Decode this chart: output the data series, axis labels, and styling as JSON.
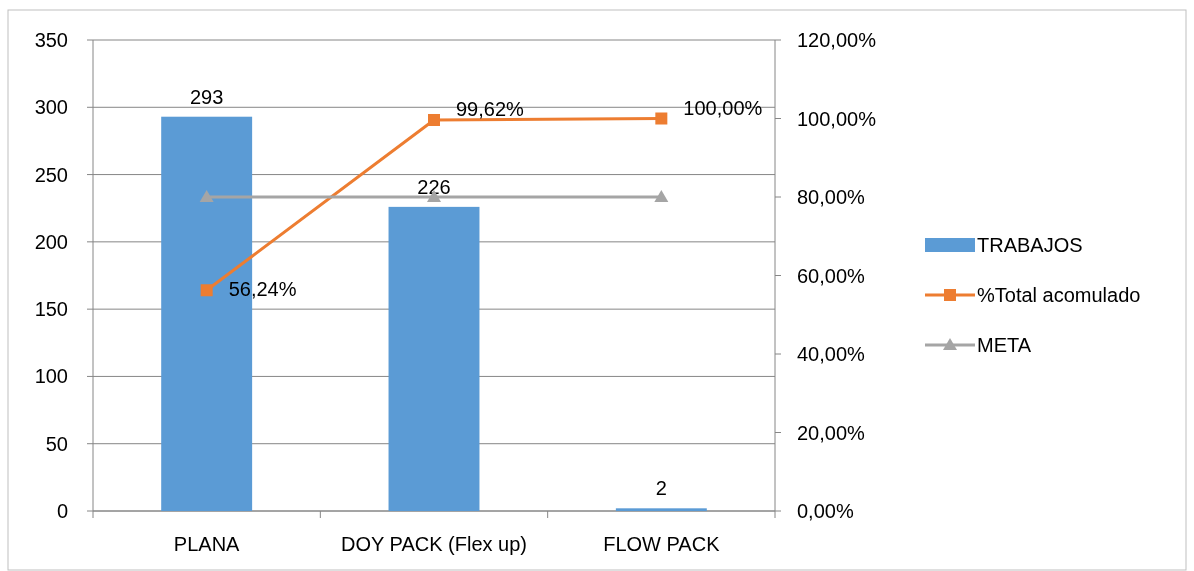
{
  "chart_data": {
    "type": "bar",
    "categories": [
      "PLANA",
      "DOY PACK (Flex up)",
      "FLOW PACK"
    ],
    "series": [
      {
        "name": "TRABAJOS",
        "color": "#5b9bd5",
        "values": [
          293,
          226,
          2
        ],
        "value_labels": [
          "293",
          "226",
          "2"
        ]
      },
      {
        "name": "%Total acomulado",
        "type": "line",
        "axis": "y2",
        "color": "#ed7d31",
        "marker": "square",
        "values": [
          56.24,
          99.62,
          100
        ],
        "value_labels": [
          "56,24%",
          "99,62%",
          "100,00%"
        ]
      },
      {
        "name": "META",
        "type": "line",
        "axis": "y2",
        "color": "#a5a5a5",
        "marker": "triangle",
        "values": [
          80,
          80,
          80
        ]
      }
    ],
    "ylim": [
      0,
      350
    ],
    "yticks": [
      0,
      50,
      100,
      150,
      200,
      250,
      300,
      350
    ],
    "y2lim": [
      0,
      120
    ],
    "y2ticks": [
      {
        "value": 0,
        "label": "0,00%"
      },
      {
        "value": 20,
        "label": "20,00%"
      },
      {
        "value": 40,
        "label": "40,00%"
      },
      {
        "value": 60,
        "label": "60,00%"
      },
      {
        "value": 80,
        "label": "80,00%"
      },
      {
        "value": 100,
        "label": "100,00%"
      },
      {
        "value": 120,
        "label": "120,00%"
      }
    ],
    "grid": "y",
    "legend": "right"
  }
}
